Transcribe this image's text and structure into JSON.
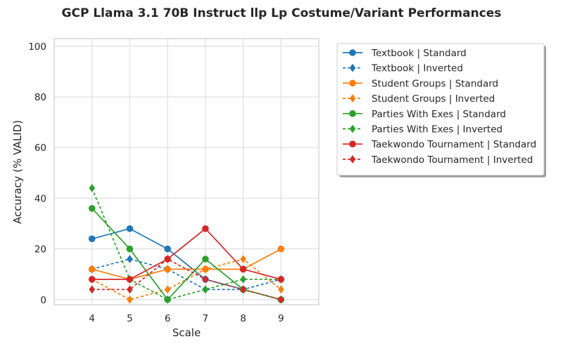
{
  "chart_data": {
    "type": "line",
    "title": "GCP Llama 3.1 70B Instruct llp Lp Costume/Variant Performances",
    "xlabel": "Scale",
    "ylabel": "Accuracy (% VALID)",
    "x": [
      4,
      5,
      6,
      7,
      8,
      9
    ],
    "xlim": [
      3,
      10
    ],
    "ylim": [
      -2,
      103
    ],
    "yticks": [
      0,
      20,
      40,
      60,
      80,
      100
    ],
    "grid": true,
    "legend_position": "outside-right",
    "series": [
      {
        "name": "Textbook | Standard",
        "color": "#1f77b4",
        "style": "solid",
        "marker": "circle",
        "values": [
          24,
          28,
          20,
          8,
          4,
          0
        ]
      },
      {
        "name": "Textbook | Inverted",
        "color": "#1f77b4",
        "style": "dashed",
        "marker": "diamond",
        "values": [
          12,
          16,
          12,
          4,
          4,
          8
        ]
      },
      {
        "name": "Student Groups | Standard",
        "color": "#ff7f0e",
        "style": "solid",
        "marker": "circle",
        "values": [
          12,
          8,
          12,
          12,
          12,
          20
        ]
      },
      {
        "name": "Student Groups | Inverted",
        "color": "#ff7f0e",
        "style": "dashed",
        "marker": "diamond",
        "values": [
          8,
          0,
          4,
          12,
          16,
          4
        ]
      },
      {
        "name": "Parties With Exes | Standard",
        "color": "#2ca02c",
        "style": "solid",
        "marker": "circle",
        "values": [
          36,
          20,
          0,
          16,
          4,
          0
        ]
      },
      {
        "name": "Parties With Exes | Inverted",
        "color": "#2ca02c",
        "style": "dashed",
        "marker": "diamond",
        "values": [
          44,
          8,
          0,
          4,
          8,
          8
        ]
      },
      {
        "name": "Taekwondo Tournament | Standard",
        "color": "#d62728",
        "style": "solid",
        "marker": "circle",
        "values": [
          8,
          8,
          16,
          28,
          12,
          8
        ]
      },
      {
        "name": "Taekwondo Tournament | Inverted",
        "color": "#d62728",
        "style": "dashed",
        "marker": "diamond",
        "values": [
          4,
          4,
          16,
          8,
          4,
          0
        ]
      }
    ]
  }
}
